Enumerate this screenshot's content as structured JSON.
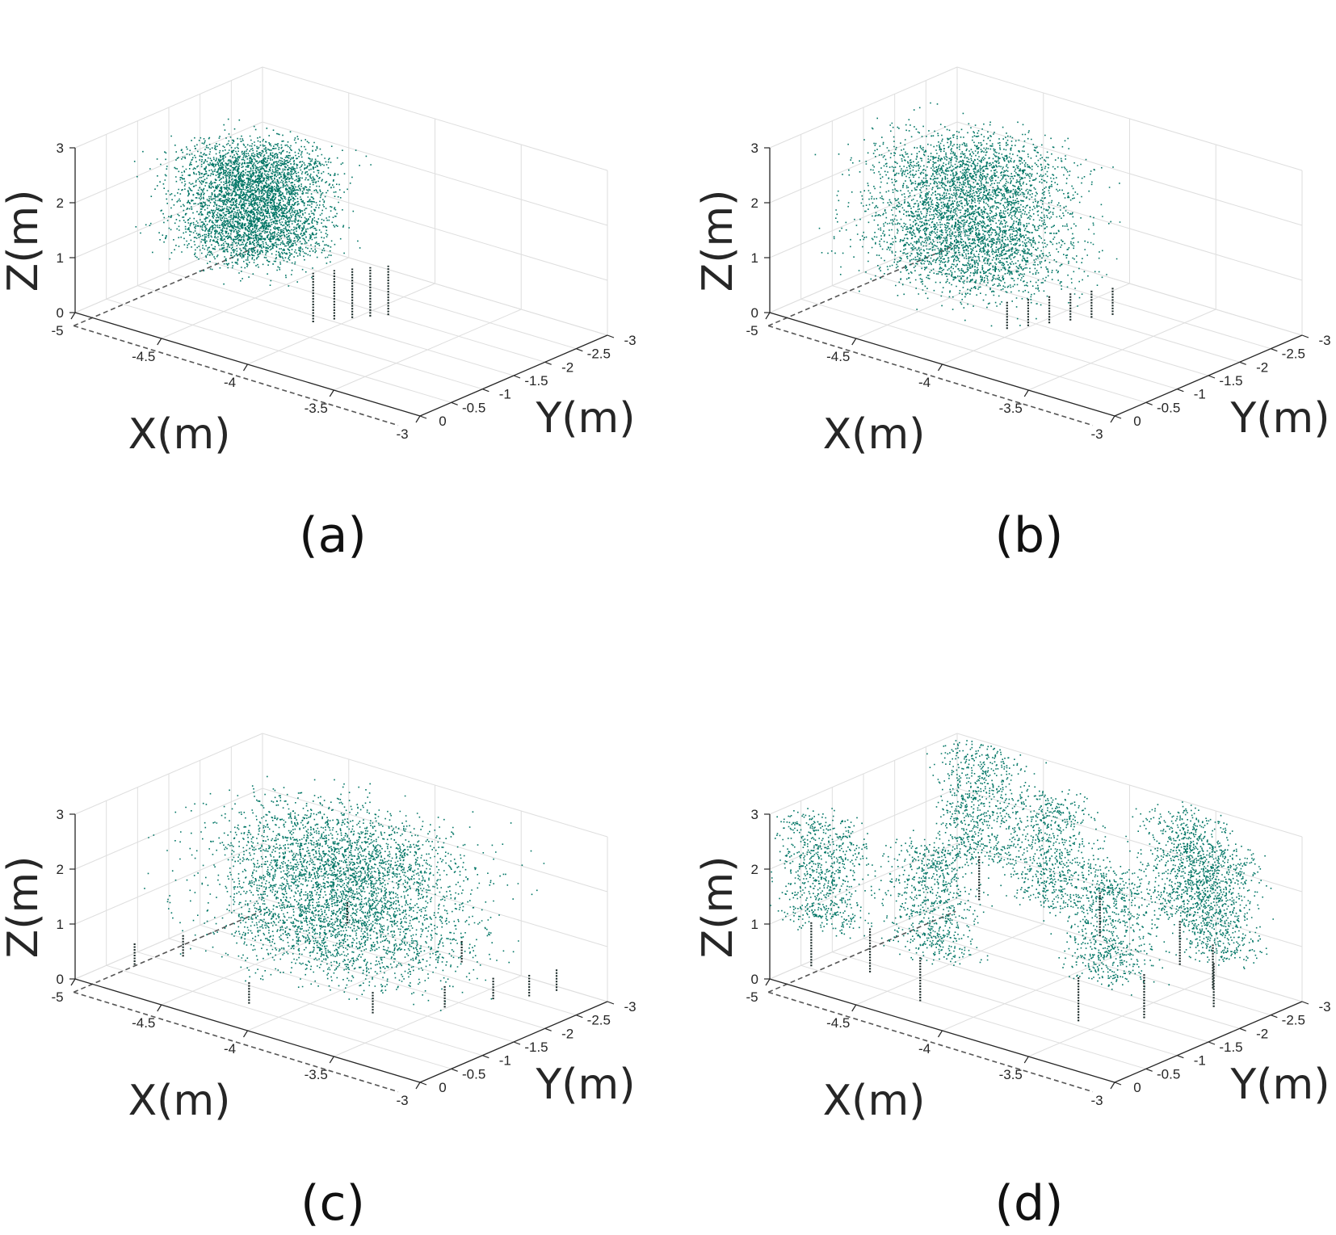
{
  "figure": {
    "captions": [
      "(a)",
      "(b)",
      "(c)",
      "(d)"
    ]
  },
  "colors": {
    "points": "#007565",
    "trunks": "#1a2a28",
    "grid": "#dedede",
    "axis": "#262626",
    "dashed": "#555555"
  },
  "chart_data": [
    {
      "type": "scatter",
      "title": "",
      "caption": "(a)",
      "xlabel": "X(m)",
      "ylabel": "Y(m)",
      "zlabel": "Z(m)",
      "xlim": [
        -5,
        -3
      ],
      "ylim": [
        -3,
        0
      ],
      "zlim": [
        0,
        3
      ],
      "xticks": [
        "-5",
        "-4.5",
        "-4",
        "-3.5",
        "-3"
      ],
      "yticks": [
        "0",
        "-0.5",
        "-1",
        "-1.5",
        "-2",
        "-2.5",
        "-3"
      ],
      "zticks": [
        "0",
        "1",
        "2",
        "3"
      ],
      "grid": true,
      "canopy": {
        "x_range": [
          -4.9,
          -3.9
        ],
        "y_range": [
          -2.3,
          -0.2
        ],
        "z_range": [
          1.1,
          2.9
        ],
        "centers": [
          [
            -4.4,
            -1.2
          ]
        ]
      },
      "trunks": [
        [
          -4.0,
          -1.05
        ],
        [
          -3.95,
          -1.25
        ],
        [
          -3.9,
          -1.4
        ],
        [
          -3.85,
          -1.55
        ],
        [
          -3.8,
          -1.7
        ]
      ]
    },
    {
      "type": "scatter",
      "title": "",
      "caption": "(b)",
      "xlabel": "X(m)",
      "ylabel": "Y(m)",
      "zlabel": "Z(m)",
      "xlim": [
        -5,
        -3
      ],
      "ylim": [
        -3,
        0
      ],
      "zlim": [
        0,
        3
      ],
      "xticks": [
        "-5",
        "-4.5",
        "-4",
        "-3.5",
        "-3"
      ],
      "yticks": [
        "0",
        "-0.5",
        "-1",
        "-1.5",
        "-2",
        "-2.5",
        "-3"
      ],
      "zticks": [
        "0",
        "1",
        "2",
        "3"
      ],
      "grid": true,
      "canopy": {
        "x_range": [
          -4.9,
          -3.5
        ],
        "y_range": [
          -2.8,
          -0.1
        ],
        "z_range": [
          0.7,
          3.0
        ],
        "centers": [
          [
            -4.3,
            -1.3
          ]
        ]
      },
      "trunks": [
        [
          -3.95,
          -0.9
        ],
        [
          -3.9,
          -1.1
        ],
        [
          -3.85,
          -1.3
        ],
        [
          -3.8,
          -1.5
        ],
        [
          -3.75,
          -1.7
        ],
        [
          -3.7,
          -1.9
        ]
      ]
    },
    {
      "type": "scatter",
      "title": "",
      "caption": "(c)",
      "xlabel": "X(m)",
      "ylabel": "Y(m)",
      "zlabel": "Z(m)",
      "xlim": [
        -5,
        -3
      ],
      "ylim": [
        -3,
        0
      ],
      "zlim": [
        0,
        3
      ],
      "xticks": [
        "-5",
        "-4.5",
        "-4",
        "-3.5",
        "-3"
      ],
      "yticks": [
        "0",
        "-0.5",
        "-1",
        "-1.5",
        "-2",
        "-2.5",
        "-3"
      ],
      "zticks": [
        "0",
        "1",
        "2",
        "3"
      ],
      "grid": true,
      "canopy": {
        "x_range": [
          -4.95,
          -3.05
        ],
        "y_range": [
          -2.95,
          -0.05
        ],
        "z_range": [
          0.6,
          3.0
        ],
        "centers": [
          [
            -4.0,
            -1.5
          ]
        ]
      },
      "trunks": [
        [
          -4.8,
          -0.4
        ],
        [
          -4.7,
          -0.9
        ],
        [
          -4.1,
          -0.3
        ],
        [
          -3.6,
          -0.9
        ],
        [
          -3.4,
          -1.5
        ],
        [
          -3.3,
          -2.0
        ],
        [
          -3.2,
          -2.3
        ],
        [
          -3.15,
          -2.6
        ],
        [
          -3.7,
          -2.6
        ],
        [
          -4.4,
          -2.7
        ]
      ]
    },
    {
      "type": "scatter",
      "title": "",
      "caption": "(d)",
      "xlabel": "X(m)",
      "ylabel": "Y(m)",
      "zlabel": "Z(m)",
      "xlim": [
        -5,
        -3
      ],
      "ylim": [
        -3,
        0
      ],
      "zlim": [
        0,
        3
      ],
      "xticks": [
        "-5",
        "-4.5",
        "-4",
        "-3.5",
        "-3"
      ],
      "yticks": [
        "0",
        "-0.5",
        "-1",
        "-1.5",
        "-2",
        "-2.5",
        "-3"
      ],
      "zticks": [
        "0",
        "1",
        "2",
        "3"
      ],
      "grid": true,
      "canopy": {
        "x_range": [
          -5.0,
          -3.0
        ],
        "y_range": [
          -3.0,
          0.0
        ],
        "z_range": [
          1.0,
          3.0
        ],
        "centers": [
          [
            -4.8,
            -0.3
          ],
          [
            -4.2,
            -0.4
          ],
          [
            -3.4,
            -1.0
          ],
          [
            -3.2,
            -2.2
          ],
          [
            -4.2,
            -2.3
          ],
          [
            -3.6,
            -2.8
          ],
          [
            -4.8,
            -2.8
          ]
        ]
      },
      "trunks": [
        [
          -4.85,
          -0.25
        ],
        [
          -4.6,
          -0.5
        ],
        [
          -4.2,
          -0.2
        ],
        [
          -3.5,
          -0.8
        ],
        [
          -3.3,
          -1.3
        ],
        [
          -3.15,
          -2.0
        ],
        [
          -3.3,
          -2.4
        ],
        [
          -3.6,
          -2.7
        ],
        [
          -4.1,
          -2.8
        ],
        [
          -4.8,
          -2.8
        ]
      ]
    }
  ]
}
